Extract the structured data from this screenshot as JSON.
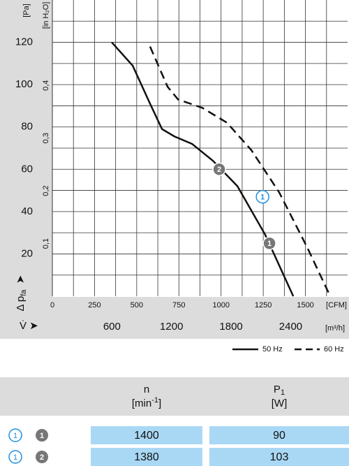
{
  "chart_data": {
    "type": "line",
    "y_label": "[Pa]",
    "y2_label": "[in H₂O]",
    "dp_label": "Δ p",
    "dp_sub": "fa",
    "flow_label": "V̇ ➤",
    "x_unit": "[CFM]",
    "x2_unit": "[m³/h]",
    "xlim": [
      0,
      1750
    ],
    "xticks": [
      0,
      250,
      500,
      750,
      1000,
      1250,
      1500
    ],
    "x2lim": [
      0,
      2973
    ],
    "x2ticks": [
      600,
      1200,
      1800,
      2400
    ],
    "ylim": [
      0,
      140
    ],
    "yticks": [
      20,
      40,
      60,
      80,
      100,
      120
    ],
    "y2lim": [
      0,
      0.562
    ],
    "y2ticks": [
      {
        "value": 0.1,
        "label": "0,1"
      },
      {
        "value": 0.2,
        "label": "0,2"
      },
      {
        "value": 0.3,
        "label": "0,3"
      },
      {
        "value": 0.4,
        "label": "0,4"
      }
    ],
    "xgrid": [
      125,
      250,
      375,
      500,
      625,
      750,
      875,
      1000,
      1125,
      1250,
      1375,
      1500,
      1625
    ],
    "ygrid": [
      10,
      20,
      30,
      40,
      50,
      60,
      70,
      80,
      90,
      100,
      110,
      120,
      130
    ],
    "series": [
      {
        "name": "50 Hz",
        "color": "#111111",
        "dashed": false,
        "x": [
          352,
          476,
          579,
          650,
          724,
          828,
          952,
          1097,
          1262,
          1428
        ],
        "values": [
          120,
          109,
          91,
          79,
          75.5,
          72,
          64,
          52,
          29,
          0
        ]
      },
      {
        "name": "60 Hz",
        "color": "#111111",
        "dashed": true,
        "x": [
          579,
          683,
          745,
          890,
          1035,
          1180,
          1345,
          1511,
          1647
        ],
        "values": [
          118,
          99,
          93,
          89,
          82,
          69,
          49,
          23,
          0
        ]
      }
    ],
    "markers": [
      {
        "label": "2",
        "x": 989,
        "y": 60,
        "style": "filled"
      },
      {
        "label": "1",
        "x": 1287,
        "y": 25,
        "style": "filled"
      },
      {
        "label": "1",
        "x": 1246,
        "y": 47,
        "style": "outline"
      }
    ]
  },
  "table": {
    "columns": [
      {
        "name": "n",
        "unit": "[min",
        "unit_sup": "-1",
        "unit_end": "]"
      },
      {
        "name": "P",
        "name_sub": "1",
        "unit": "[W]"
      }
    ],
    "rows": [
      {
        "ref": "1",
        "point": "1",
        "cells": [
          "1400",
          "90"
        ]
      },
      {
        "ref": "1",
        "point": "2",
        "cells": [
          "1380",
          "103"
        ]
      }
    ]
  }
}
